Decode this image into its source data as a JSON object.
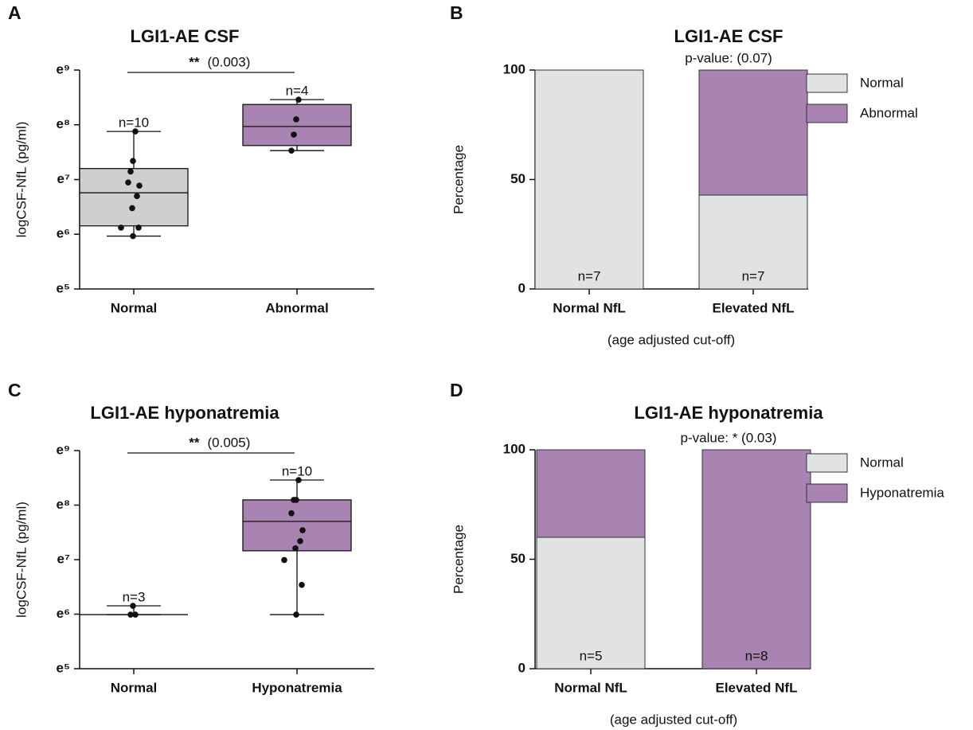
{
  "chart_data": [
    {
      "type": "box",
      "panel": "A",
      "title": "LGI1-AE CSF",
      "ylabel": "logCSF-NfL (pg/ml)",
      "yscale": "log",
      "ylim": [
        148.41,
        8103.08
      ],
      "yticks": [
        {
          "value": 148.41,
          "label": "e⁵"
        },
        {
          "value": 403.43,
          "label": "e⁶"
        },
        {
          "value": 1096.63,
          "label": "e⁷"
        },
        {
          "value": 2980.96,
          "label": "e⁸"
        },
        {
          "value": 8103.08,
          "label": "e⁹"
        }
      ],
      "categories": [
        "Normal",
        "Abnormal"
      ],
      "boxes": [
        {
          "color": "#cfcfcf",
          "whisker_low": 390,
          "q1": 470,
          "median": 860,
          "q3": 1340,
          "whisker_high": 2640,
          "n_label": "n=10",
          "points": [
            2640,
            1540,
            1270,
            1040,
            980,
            810,
            650,
            455,
            455,
            390
          ]
        },
        {
          "color": "#a983b2",
          "whisker_low": 1860,
          "q1": 2040,
          "median": 2890,
          "q3": 4320,
          "whisker_high": 4720,
          "n_label": "n=4",
          "points": [
            4720,
            3290,
            2490,
            1860
          ]
        }
      ],
      "significance": {
        "stars": "**",
        "p": "(0.003)"
      }
    },
    {
      "type": "stacked_bar",
      "panel": "B",
      "title": "LGI1-AE CSF",
      "ylabel": "Percentage",
      "xlabel": "(age adjusted cut-off)",
      "ylim": [
        0,
        100
      ],
      "yticks": [
        0,
        50,
        100
      ],
      "categories": [
        "Normal NfL",
        "Elevated NfL"
      ],
      "series": [
        {
          "name": "Normal",
          "color": "#e1e3e2",
          "values": [
            100,
            42.9
          ]
        },
        {
          "name": "Abnormal",
          "color": "#a983b2",
          "values": [
            0,
            57.1
          ]
        }
      ],
      "n_labels": [
        "n=7",
        "n=7"
      ],
      "annotation": "p-value: (0.07)",
      "legend": "right"
    },
    {
      "type": "box",
      "panel": "C",
      "title": "LGI1-AE hyponatremia",
      "ylabel": "logCSF-NfL (pg/ml)",
      "yscale": "log",
      "ylim": [
        148.41,
        8103.08
      ],
      "yticks": [
        {
          "value": 148.41,
          "label": "e⁵"
        },
        {
          "value": 403.43,
          "label": "e⁶"
        },
        {
          "value": 1096.63,
          "label": "e⁷"
        },
        {
          "value": 2980.96,
          "label": "e⁸"
        },
        {
          "value": 8103.08,
          "label": "e⁹"
        }
      ],
      "categories": [
        "Normal",
        "Hyponatremia"
      ],
      "boxes": [
        {
          "color": "#cfcfcf",
          "whisker_low": 400,
          "q1": 400,
          "median": 400,
          "q3": 400,
          "whisker_high": 470,
          "n_label": "n=3",
          "points": [
            400,
            470,
            400
          ]
        },
        {
          "color": "#a983b2",
          "whisker_low": 400,
          "q1": 1290,
          "median": 2210,
          "q3": 3280,
          "whisker_high": 4720,
          "n_label": "n=10",
          "points": [
            4720,
            3280,
            3280,
            2570,
            1880,
            1540,
            1350,
            1090,
            690,
            400
          ]
        }
      ],
      "significance": {
        "stars": "**",
        "p": "(0.005)"
      }
    },
    {
      "type": "stacked_bar",
      "panel": "D",
      "title": "LGI1-AE hyponatremia",
      "ylabel": "Percentage",
      "xlabel": "(age adjusted cut-off)",
      "ylim": [
        0,
        100
      ],
      "yticks": [
        0,
        50,
        100
      ],
      "categories": [
        "Normal NfL",
        "Elevated NfL"
      ],
      "series": [
        {
          "name": "Normal",
          "color": "#e1e3e2",
          "values": [
            60,
            0
          ]
        },
        {
          "name": "Hyponatremia",
          "color": "#a983b2",
          "values": [
            40,
            100
          ]
        }
      ],
      "n_labels": [
        "n=5",
        "n=8"
      ],
      "annotation": "p-value:  * (0.03)",
      "legend": "right"
    }
  ]
}
